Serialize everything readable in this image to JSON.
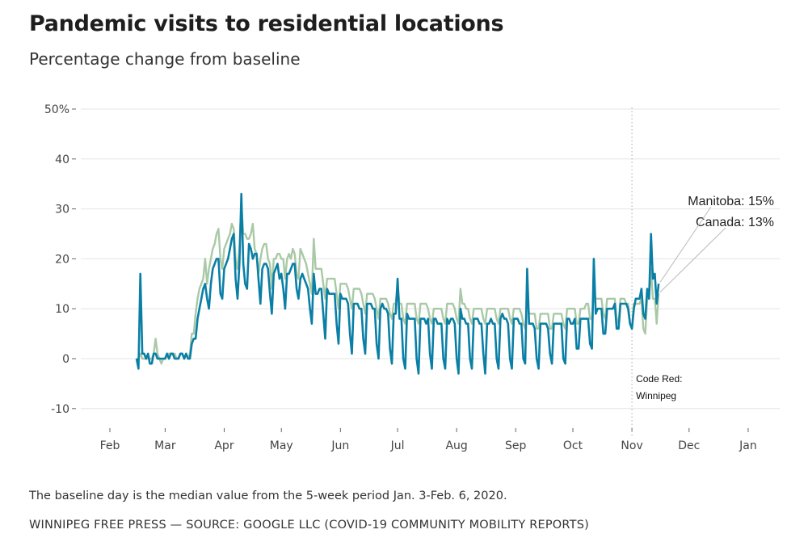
{
  "title": "Pandemic visits to residential locations",
  "subtitle": "Percentage change from baseline",
  "note": "The baseline day is the median value from the 5-week period Jan. 3-Feb. 6, 2020.",
  "source": "WINNIPEG FREE PRESS — SOURCE: GOOGLE LLC (COVID-19 COMMUNITY MOBILITY REPORTS)",
  "chart_data": {
    "type": "line",
    "title": "Pandemic visits to residential locations",
    "subtitle": "Percentage change from baseline",
    "xlabel": "",
    "ylabel": "",
    "ylim": [
      -15,
      50
    ],
    "y_ticks": [
      {
        "value": 50,
        "label": "50%"
      },
      {
        "value": 40,
        "label": "40"
      },
      {
        "value": 30,
        "label": "30"
      },
      {
        "value": 20,
        "label": "20"
      },
      {
        "value": 10,
        "label": "10"
      },
      {
        "value": 0,
        "label": "0"
      },
      {
        "value": -10,
        "label": "-10"
      }
    ],
    "x_ticks": [
      {
        "day": 0,
        "label": "Feb"
      },
      {
        "day": 29,
        "label": "Mar"
      },
      {
        "day": 60,
        "label": "Apr"
      },
      {
        "day": 90,
        "label": "May"
      },
      {
        "day": 121,
        "label": "Jun"
      },
      {
        "day": 151,
        "label": "Jul"
      },
      {
        "day": 182,
        "label": "Aug"
      },
      {
        "day": 213,
        "label": "Sep"
      },
      {
        "day": 243,
        "label": "Oct"
      },
      {
        "day": 274,
        "label": "Nov"
      },
      {
        "day": 304,
        "label": "Dec"
      },
      {
        "day": 335,
        "label": "Jan"
      }
    ],
    "x_unit": "days since Feb 1, 2020 (daily series start Feb 15)",
    "x_start_day": 14,
    "grid": true,
    "series": [
      {
        "name": "Canada",
        "color": "#a9c9a6",
        "end_label": "Canada: 13%",
        "values": [
          0,
          0,
          1,
          0,
          0,
          0,
          0,
          0,
          0,
          1,
          4,
          1,
          0,
          -1,
          0,
          0,
          1,
          1,
          1,
          1,
          1,
          0,
          0,
          1,
          1,
          0,
          1,
          0,
          1,
          5,
          5,
          9,
          12,
          14,
          15,
          16,
          20,
          15,
          18,
          20,
          22,
          23,
          25,
          26,
          20,
          18,
          22,
          23,
          24,
          25,
          27,
          26,
          20,
          18,
          22,
          31,
          25,
          25,
          24,
          24,
          25,
          27,
          22,
          21,
          17,
          20,
          22,
          23,
          23,
          20,
          19,
          14,
          20,
          20,
          21,
          21,
          20,
          20,
          16,
          20,
          21,
          20,
          22,
          21,
          17,
          16,
          22,
          21,
          20,
          19,
          17,
          15,
          13,
          24,
          18,
          18,
          18,
          18,
          15,
          12,
          16,
          16,
          16,
          16,
          16,
          13,
          10,
          15,
          15,
          15,
          15,
          14,
          12,
          10,
          14,
          14,
          14,
          14,
          13,
          11,
          9,
          13,
          13,
          13,
          13,
          12,
          10,
          8,
          12,
          12,
          12,
          12,
          11,
          9,
          8,
          11,
          11,
          15,
          11,
          11,
          8,
          7,
          11,
          11,
          11,
          11,
          11,
          8,
          7,
          11,
          11,
          11,
          11,
          10,
          8,
          7,
          10,
          10,
          10,
          10,
          10,
          8,
          7,
          11,
          11,
          11,
          11,
          10,
          8,
          7,
          14,
          11,
          11,
          10,
          10,
          8,
          7,
          10,
          10,
          10,
          10,
          10,
          8,
          7,
          10,
          10,
          10,
          10,
          10,
          8,
          7,
          10,
          10,
          10,
          10,
          10,
          8,
          7,
          10,
          10,
          10,
          10,
          9,
          7,
          6,
          12,
          9,
          9,
          9,
          9,
          6,
          6,
          9,
          9,
          9,
          9,
          9,
          6,
          6,
          9,
          9,
          9,
          9,
          9,
          7,
          6,
          10,
          10,
          10,
          10,
          10,
          7,
          7,
          10,
          10,
          10,
          11,
          11,
          8,
          8,
          13,
          12,
          12,
          12,
          12,
          9,
          8,
          12,
          12,
          12,
          12,
          12,
          8,
          7,
          12,
          12,
          12,
          11,
          11,
          7,
          6,
          11,
          11,
          11,
          11,
          12,
          6,
          5,
          12,
          12,
          18,
          12,
          12,
          7,
          13
        ]
      },
      {
        "name": "Manitoba",
        "color": "#0a7fa6",
        "end_label": "Manitoba: 15%",
        "values": [
          0,
          -2,
          17,
          1,
          1,
          0,
          1,
          -1,
          -1,
          1,
          1,
          0,
          0,
          0,
          0,
          0,
          1,
          0,
          1,
          1,
          0,
          0,
          0,
          1,
          1,
          0,
          1,
          0,
          0,
          3,
          4,
          4,
          8,
          10,
          12,
          14,
          15,
          12,
          10,
          15,
          18,
          19,
          20,
          20,
          13,
          12,
          18,
          19,
          20,
          22,
          24,
          25,
          16,
          12,
          19,
          33,
          19,
          15,
          14,
          23,
          22,
          20,
          21,
          21,
          16,
          11,
          18,
          19,
          19,
          18,
          13,
          9,
          17,
          18,
          19,
          16,
          17,
          14,
          10,
          17,
          17,
          18,
          19,
          19,
          14,
          12,
          16,
          17,
          16,
          15,
          14,
          10,
          7,
          17,
          13,
          13,
          14,
          14,
          9,
          4,
          14,
          13,
          13,
          13,
          13,
          7,
          3,
          13,
          12,
          12,
          12,
          11,
          5,
          1,
          11,
          11,
          11,
          10,
          10,
          4,
          1,
          11,
          11,
          11,
          10,
          10,
          3,
          0,
          10,
          11,
          10,
          10,
          9,
          2,
          -1,
          9,
          9,
          16,
          8,
          8,
          0,
          -2,
          9,
          8,
          8,
          8,
          8,
          0,
          -3,
          8,
          8,
          8,
          7,
          8,
          1,
          -2,
          8,
          8,
          7,
          7,
          7,
          0,
          -2,
          8,
          7,
          8,
          8,
          7,
          0,
          -3,
          10,
          8,
          8,
          7,
          7,
          0,
          -2,
          8,
          8,
          8,
          7,
          7,
          1,
          -3,
          7,
          7,
          8,
          7,
          7,
          0,
          -2,
          8,
          9,
          8,
          8,
          7,
          0,
          -2,
          8,
          8,
          8,
          7,
          7,
          0,
          -1,
          18,
          7,
          7,
          7,
          6,
          0,
          -2,
          7,
          7,
          7,
          7,
          6,
          1,
          -1,
          7,
          7,
          7,
          7,
          7,
          0,
          -1,
          8,
          8,
          7,
          7,
          8,
          2,
          2,
          8,
          8,
          8,
          8,
          8,
          3,
          2,
          20,
          9,
          10,
          10,
          10,
          5,
          5,
          10,
          10,
          10,
          10,
          11,
          6,
          6,
          11,
          11,
          11,
          11,
          10,
          7,
          6,
          10,
          12,
          12,
          12,
          14,
          9,
          8,
          14,
          12,
          25,
          16,
          17,
          11,
          15
        ]
      }
    ],
    "annotations": [
      {
        "day": 274,
        "text_line1": "Code Red:",
        "text_line2": "Winnipeg",
        "style": "dotted vertical line"
      }
    ]
  }
}
